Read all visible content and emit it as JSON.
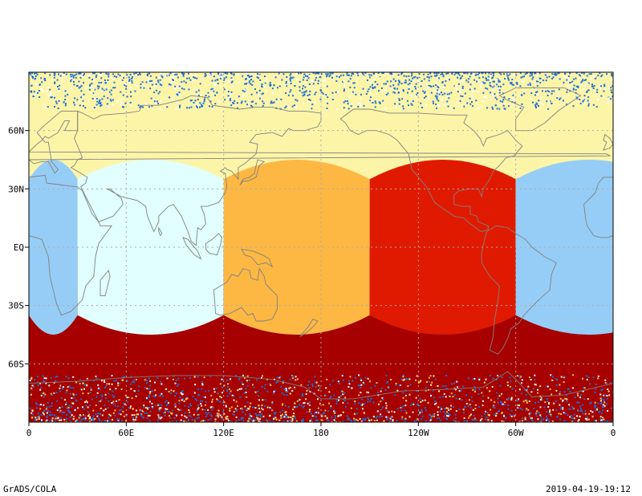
{
  "map": {
    "type": "global-map",
    "projection": "lat-lon",
    "lon_range": [
      0,
      360
    ],
    "lat_range": [
      -90,
      90
    ],
    "grid": true,
    "x_ticks": [
      {
        "lon": 0,
        "label": "0"
      },
      {
        "lon": 60,
        "label": "60E"
      },
      {
        "lon": 120,
        "label": "120E"
      },
      {
        "lon": 180,
        "label": "180"
      },
      {
        "lon": 240,
        "label": "120W"
      },
      {
        "lon": 300,
        "label": "60W"
      },
      {
        "lon": 360,
        "label": "0"
      }
    ],
    "y_ticks": [
      {
        "lat": 60,
        "label": "60N"
      },
      {
        "lat": 30,
        "label": "30N"
      },
      {
        "lat": 0,
        "label": "EQ"
      },
      {
        "lat": -30,
        "label": "30S"
      },
      {
        "lat": -60,
        "label": "60S"
      }
    ],
    "colors": {
      "north_band": "#fcf5a8",
      "polar_noise": "#1e6fd6",
      "south_band": "#a60000",
      "region_lightblue": "#96cdf6",
      "region_cyan": "#e0fffe",
      "region_orange": "#fdb844",
      "region_red": "#e01a00",
      "coastline": "#808080",
      "grid": "#aaaaaa"
    },
    "regions": [
      {
        "name": "lightblue",
        "lon_min": 0,
        "lon_max": 30,
        "color_key": "region_lightblue"
      },
      {
        "name": "cyan",
        "lon_min": 30,
        "lon_max": 120,
        "color_key": "region_cyan"
      },
      {
        "name": "orange",
        "lon_min": 120,
        "lon_max": 210,
        "color_key": "region_orange"
      },
      {
        "name": "red",
        "lon_min": 210,
        "lon_max": 300,
        "color_key": "region_red"
      },
      {
        "name": "lightblue",
        "lon_min": 300,
        "lon_max": 390,
        "color_key": "region_lightblue"
      }
    ]
  },
  "footer": {
    "left": "GrADS/COLA",
    "right": "2019-04-19-19:12"
  }
}
